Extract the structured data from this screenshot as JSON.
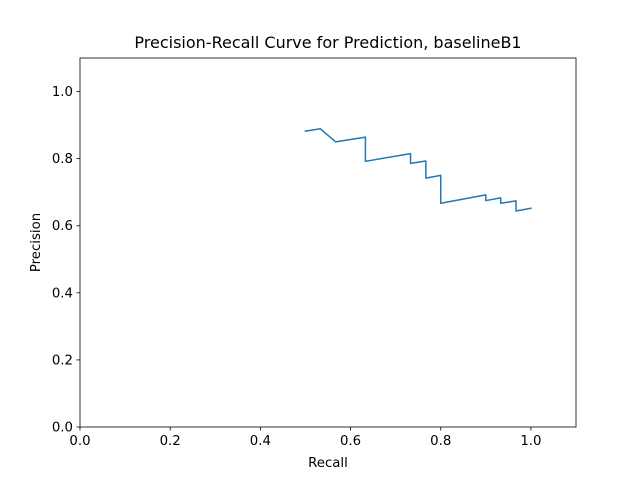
{
  "chart_data": {
    "type": "line",
    "title": "Precision-Recall Curve for Prediction, baselineB1",
    "xlabel": "Recall",
    "ylabel": "Precision",
    "xlim": [
      0.0,
      1.1
    ],
    "ylim": [
      0.0,
      1.1
    ],
    "xticks": [
      "0.0",
      "0.2",
      "0.4",
      "0.6",
      "0.8",
      "1.0"
    ],
    "yticks": [
      "0.0",
      "0.2",
      "0.4",
      "0.6",
      "0.8",
      "1.0"
    ],
    "grid": false,
    "color": "#1f77b4",
    "series": [
      {
        "points": [
          [
            0.5,
            0.882
          ],
          [
            0.533,
            0.889
          ],
          [
            0.567,
            0.85
          ],
          [
            0.633,
            0.864
          ],
          [
            0.633,
            0.792
          ],
          [
            0.733,
            0.815
          ],
          [
            0.733,
            0.786
          ],
          [
            0.767,
            0.793
          ],
          [
            0.767,
            0.742
          ],
          [
            0.8,
            0.75
          ],
          [
            0.8,
            0.667
          ],
          [
            0.9,
            0.692
          ],
          [
            0.9,
            0.675
          ],
          [
            0.933,
            0.683
          ],
          [
            0.933,
            0.667
          ],
          [
            0.967,
            0.674
          ],
          [
            0.967,
            0.644
          ],
          [
            1.0,
            0.652
          ]
        ]
      }
    ]
  }
}
